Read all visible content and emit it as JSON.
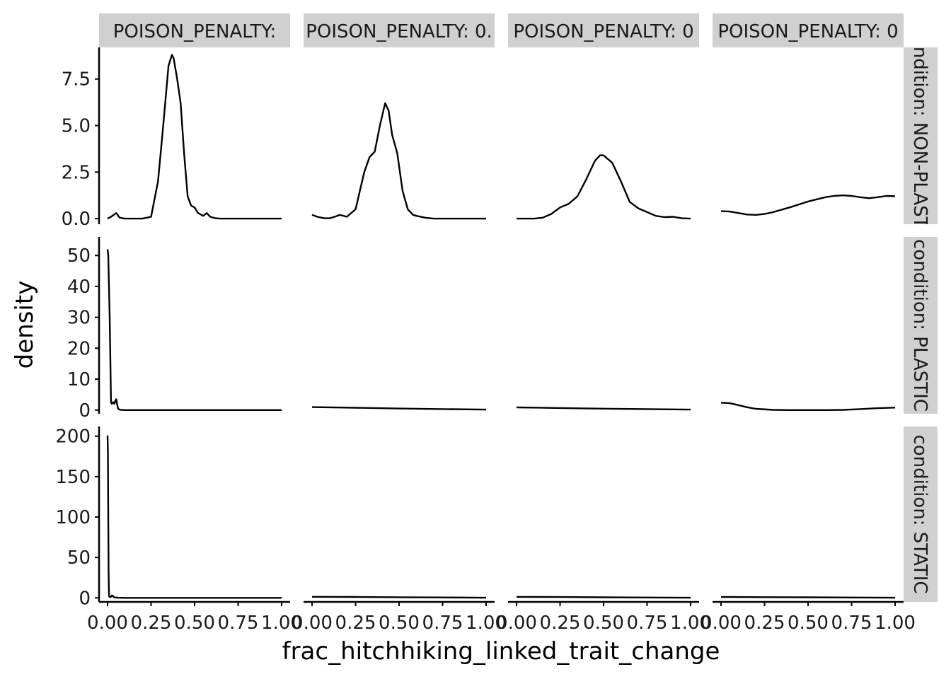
{
  "chart_data": {
    "type": "density",
    "xlabel": "frac_hitchhiking_linked_trait_change",
    "ylabel": "density",
    "xlim": [
      0,
      1
    ],
    "x_ticks": [
      "0.00",
      "0.25",
      "0.50",
      "0.75",
      "1.00"
    ],
    "col_strips": [
      "POISON_PENALTY:",
      "POISON_PENALTY: 0.",
      "POISON_PENALTY: 0",
      "POISON_PENALTY: 0"
    ],
    "row_strips": [
      "condition: NON-PLASTIC",
      "condition: PLASTIC",
      "condition: STATIC"
    ],
    "rows": [
      {
        "ylim": [
          -0.3,
          9.2
        ],
        "y_ticks": [
          {
            "value": 0,
            "label": "0.0"
          },
          {
            "value": 2.5,
            "label": "2.5"
          },
          {
            "value": 5,
            "label": "5.0"
          },
          {
            "value": 7.5,
            "label": "7.5"
          }
        ],
        "panels": [
          {
            "x": [
              0,
              0.02,
              0.05,
              0.07,
              0.1,
              0.15,
              0.2,
              0.25,
              0.29,
              0.32,
              0.35,
              0.37,
              0.38,
              0.4,
              0.42,
              0.44,
              0.46,
              0.48,
              0.5,
              0.52,
              0.55,
              0.57,
              0.59,
              0.62,
              0.65,
              0.7,
              0.8,
              0.9,
              1.0
            ],
            "y": [
              0,
              0.1,
              0.3,
              0.05,
              0,
              0,
              0,
              0.1,
              2.0,
              5.0,
              8.2,
              8.8,
              8.6,
              7.5,
              6.2,
              3.5,
              1.2,
              0.7,
              0.6,
              0.3,
              0.15,
              0.3,
              0.1,
              0.02,
              0,
              0,
              0,
              0,
              0
            ]
          },
          {
            "x": [
              0,
              0.03,
              0.07,
              0.1,
              0.13,
              0.16,
              0.2,
              0.25,
              0.3,
              0.33,
              0.36,
              0.39,
              0.42,
              0.44,
              0.46,
              0.49,
              0.52,
              0.55,
              0.58,
              0.6,
              0.65,
              0.7,
              0.8,
              0.9,
              1.0
            ],
            "y": [
              0.2,
              0.1,
              0.02,
              0.02,
              0.1,
              0.2,
              0.1,
              0.5,
              2.5,
              3.3,
              3.6,
              5.0,
              6.2,
              5.8,
              4.5,
              3.5,
              1.5,
              0.5,
              0.2,
              0.15,
              0.05,
              0,
              0,
              0,
              0
            ]
          },
          {
            "x": [
              0,
              0.1,
              0.15,
              0.2,
              0.25,
              0.3,
              0.35,
              0.4,
              0.45,
              0.48,
              0.5,
              0.55,
              0.6,
              0.65,
              0.7,
              0.75,
              0.8,
              0.85,
              0.9,
              0.95,
              1.0
            ],
            "y": [
              0,
              0,
              0.05,
              0.25,
              0.6,
              0.8,
              1.2,
              2.1,
              3.1,
              3.4,
              3.4,
              3.0,
              2.0,
              0.9,
              0.55,
              0.35,
              0.15,
              0.08,
              0.1,
              0.02,
              0
            ]
          },
          {
            "x": [
              0,
              0.05,
              0.1,
              0.15,
              0.2,
              0.25,
              0.3,
              0.4,
              0.5,
              0.6,
              0.65,
              0.7,
              0.75,
              0.8,
              0.85,
              0.9,
              0.95,
              1.0
            ],
            "y": [
              0.4,
              0.38,
              0.3,
              0.22,
              0.2,
              0.25,
              0.35,
              0.62,
              0.92,
              1.15,
              1.22,
              1.25,
              1.22,
              1.15,
              1.1,
              1.15,
              1.22,
              1.2
            ]
          }
        ]
      },
      {
        "ylim": [
          -1.2,
          56
        ],
        "y_ticks": [
          {
            "value": 0,
            "label": "0"
          },
          {
            "value": 10,
            "label": "10"
          },
          {
            "value": 20,
            "label": "20"
          },
          {
            "value": 30,
            "label": "30"
          },
          {
            "value": 40,
            "label": "40"
          },
          {
            "value": 50,
            "label": "50"
          }
        ],
        "panels": [
          {
            "x": [
              0,
              0.004,
              0.012,
              0.02,
              0.025,
              0.03,
              0.035,
              0.04,
              0.045,
              0.05,
              0.055,
              0.06,
              0.07,
              0.08,
              0.1,
              0.2,
              0.5,
              0.75,
              1.0
            ],
            "y": [
              52,
              50,
              30,
              2.5,
              2.0,
              2.5,
              2.5,
              2.0,
              3.0,
              3.5,
              2.0,
              0.5,
              0.1,
              0.05,
              0,
              0,
              0,
              0,
              0
            ]
          },
          {
            "x": [
              0,
              0.25,
              0.5,
              0.75,
              1.0
            ],
            "y": [
              0.95,
              0.75,
              0.5,
              0.3,
              0.15
            ]
          },
          {
            "x": [
              0,
              0.25,
              0.5,
              0.75,
              1.0
            ],
            "y": [
              0.85,
              0.65,
              0.45,
              0.3,
              0.15
            ]
          },
          {
            "x": [
              0,
              0.05,
              0.1,
              0.15,
              0.2,
              0.3,
              0.4,
              0.5,
              0.6,
              0.7,
              0.8,
              0.9,
              1.0
            ],
            "y": [
              2.4,
              2.2,
              1.6,
              0.9,
              0.4,
              0.05,
              0,
              0,
              0,
              0.05,
              0.3,
              0.6,
              0.8
            ]
          }
        ]
      },
      {
        "ylim": [
          -5,
          212
        ],
        "y_ticks": [
          {
            "value": 0,
            "label": "0"
          },
          {
            "value": 50,
            "label": "50"
          },
          {
            "value": 100,
            "label": "100"
          },
          {
            "value": 150,
            "label": "150"
          },
          {
            "value": 200,
            "label": "200"
          }
        ],
        "panels": [
          {
            "x": [
              0,
              0.002,
              0.004,
              0.006,
              0.008,
              0.01,
              0.015,
              0.02,
              0.025,
              0.03,
              0.035,
              0.04,
              0.06,
              0.1,
              0.5,
              1.0
            ],
            "y": [
              201,
              180,
              100,
              30,
              5,
              1.5,
              1.0,
              1.5,
              3.0,
              2.5,
              1.0,
              0.5,
              0.2,
              0,
              0,
              0
            ]
          },
          {
            "x": [
              0,
              0.25,
              0.5,
              0.75,
              1.0
            ],
            "y": [
              1.3,
              1.1,
              0.8,
              0.5,
              0.2
            ]
          },
          {
            "x": [
              0,
              0.25,
              0.5,
              0.75,
              1.0
            ],
            "y": [
              1.2,
              1.0,
              0.7,
              0.45,
              0.15
            ]
          },
          {
            "x": [
              0,
              0.25,
              0.5,
              0.75,
              1.0
            ],
            "y": [
              1.1,
              0.9,
              0.7,
              0.45,
              0.2
            ]
          }
        ]
      }
    ]
  }
}
